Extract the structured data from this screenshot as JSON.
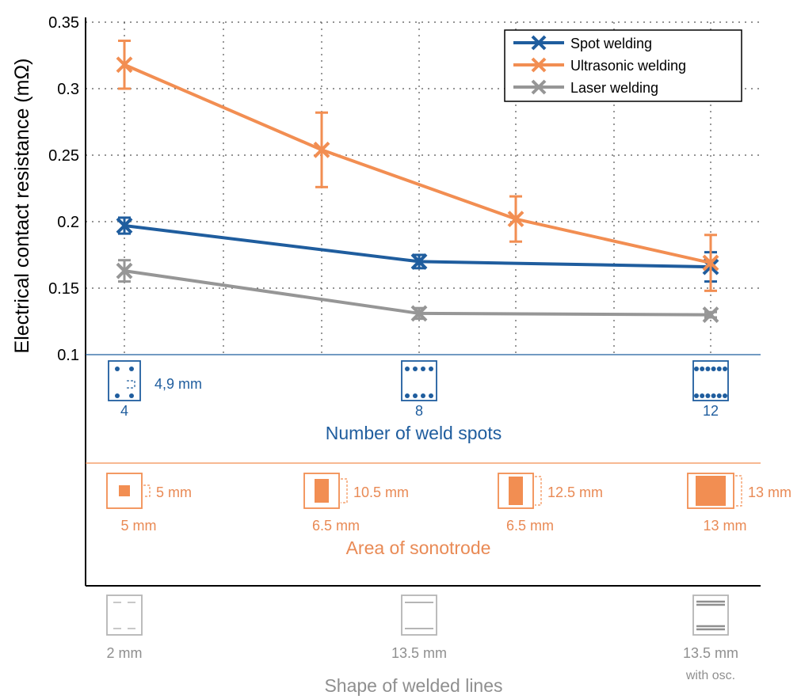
{
  "chart_data": {
    "type": "line",
    "ylabel": "Electrical contact resistance (mΩ)",
    "ylim": [
      0.1,
      0.35
    ],
    "yticks": [
      "0.35",
      "0.3",
      "0.25",
      "0.2",
      "0.15",
      "0.1"
    ],
    "grid": true,
    "legend_position": "top-right",
    "series": [
      {
        "name": "Spot welding",
        "color": "#1f5d9e",
        "x": [
          1,
          3,
          5
        ],
        "y": [
          0.197,
          0.17,
          0.166
        ],
        "error": [
          0.006,
          0.005,
          0.011
        ]
      },
      {
        "name": "Ultrasonic welding",
        "color": "#f28e52",
        "x": [
          1,
          2,
          4,
          5
        ],
        "y": [
          0.318,
          0.254,
          0.202,
          0.169
        ],
        "error": [
          0.018,
          0.028,
          0.017,
          0.021
        ]
      },
      {
        "name": "Laser welding",
        "color": "#969696",
        "x": [
          1,
          3,
          5
        ],
        "y": [
          0.163,
          0.131,
          0.13
        ],
        "error": [
          0.008,
          0.004,
          0.002
        ]
      }
    ],
    "category_axes": [
      {
        "title": "Number of weld spots",
        "color": "#1f5d9e",
        "items": [
          {
            "x": 1,
            "label": "4",
            "note": "4,9 mm"
          },
          {
            "x": 3,
            "label": "8"
          },
          {
            "x": 5,
            "label": "12"
          }
        ]
      },
      {
        "title": "Area of sonotrode",
        "color": "#f28e52",
        "items": [
          {
            "x": 1,
            "width_label": "5 mm",
            "height_label": "5 mm"
          },
          {
            "x": 2,
            "width_label": "6.5 mm",
            "height_label": "10.5 mm"
          },
          {
            "x": 4,
            "width_label": "6.5 mm",
            "height_label": "12.5 mm"
          },
          {
            "x": 5,
            "width_label": "13 mm",
            "height_label": "13 mm"
          }
        ]
      },
      {
        "title": "Shape of welded lines",
        "color": "#8f8f8f",
        "items": [
          {
            "x": 1,
            "label": "2 mm"
          },
          {
            "x": 3,
            "label": "13.5 mm"
          },
          {
            "x": 5,
            "label": "13.5 mm",
            "label2": "with osc."
          }
        ]
      }
    ]
  }
}
